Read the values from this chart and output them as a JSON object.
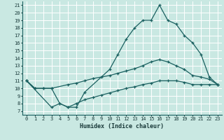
{
  "xlabel": "Humidex (Indice chaleur)",
  "xlim": [
    -0.5,
    23.5
  ],
  "ylim": [
    6.5,
    21.5
  ],
  "yticks": [
    7,
    8,
    9,
    10,
    11,
    12,
    13,
    14,
    15,
    16,
    17,
    18,
    19,
    20,
    21
  ],
  "xticks": [
    0,
    1,
    2,
    3,
    4,
    5,
    6,
    7,
    8,
    9,
    10,
    11,
    12,
    13,
    14,
    15,
    16,
    17,
    18,
    19,
    20,
    21,
    22,
    23
  ],
  "bg_color": "#c9e8e2",
  "grid_color": "#ffffff",
  "line_color": "#1a6060",
  "line1_x": [
    0,
    1,
    2,
    3,
    4,
    5,
    6,
    7,
    10,
    11,
    12,
    13,
    14,
    15,
    16,
    17,
    18,
    19,
    20,
    21,
    22,
    23
  ],
  "line1_y": [
    11,
    10,
    10,
    10,
    8,
    7.5,
    7.5,
    9.5,
    12.5,
    14.5,
    16.5,
    18,
    19,
    19,
    21,
    19,
    18.5,
    17,
    16,
    14.5,
    11.5,
    10.5
  ],
  "line2_x": [
    0,
    1,
    2,
    3,
    5,
    6,
    7,
    8,
    9,
    10,
    11,
    12,
    13,
    14,
    15,
    16,
    17,
    18,
    19,
    20,
    21,
    22,
    23
  ],
  "line2_y": [
    11,
    10,
    10,
    10,
    10.5,
    10.7,
    11.0,
    11.3,
    11.5,
    11.7,
    12.0,
    12.3,
    12.6,
    13.0,
    13.5,
    13.8,
    13.5,
    13.0,
    12.5,
    11.7,
    11.5,
    11.2,
    10.5
  ],
  "line3_x": [
    0,
    3,
    4,
    5,
    6,
    7,
    8,
    9,
    10,
    11,
    12,
    13,
    14,
    15,
    16,
    17,
    18,
    19,
    20,
    21,
    22,
    23
  ],
  "line3_y": [
    11,
    7.5,
    8,
    7.5,
    8,
    8.5,
    8.8,
    9.1,
    9.4,
    9.7,
    10,
    10.2,
    10.5,
    10.7,
    11.0,
    11.0,
    11.0,
    10.8,
    10.5,
    10.5,
    10.5,
    10.5
  ]
}
